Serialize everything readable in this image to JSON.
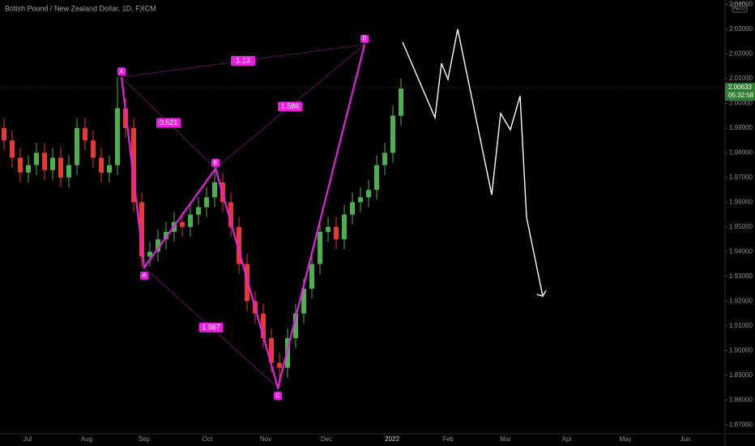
{
  "chart_data": {
    "type": "candlestick",
    "title": "British Pound / New Zealand Dollar, 1D, FXCM",
    "currency": "NZD",
    "categories": [
      "Jul",
      "Aug",
      "Sep",
      "Oct",
      "Nov",
      "Dec",
      "2022",
      "Feb",
      "Mar",
      "Apr",
      "May",
      "Jun"
    ],
    "open": [
      1.99,
      1.985,
      1.978,
      1.972,
      1.975,
      1.98,
      1.973,
      1.978,
      1.97,
      1.975,
      1.99,
      1.985,
      1.978,
      1.972,
      1.975,
      1.998,
      1.99,
      1.96,
      1.938,
      1.94,
      1.945,
      1.948,
      1.952,
      1.95,
      1.955,
      1.958,
      1.962,
      1.968,
      1.96,
      1.95,
      1.935,
      1.92,
      1.915,
      1.905,
      1.895,
      1.893,
      1.905,
      1.915,
      1.925,
      1.935,
      1.948,
      1.95,
      1.945,
      1.955,
      1.96,
      1.962,
      1.965,
      1.975,
      1.98,
      1.995
    ],
    "high": [
      1.994,
      1.989,
      1.982,
      1.979,
      1.984,
      1.984,
      1.982,
      1.982,
      1.979,
      1.994,
      1.994,
      1.989,
      1.982,
      1.979,
      2.0106,
      2.002,
      1.994,
      1.964,
      1.944,
      1.949,
      1.952,
      1.956,
      1.956,
      1.959,
      1.962,
      1.966,
      1.9736,
      1.972,
      1.964,
      1.954,
      1.939,
      1.924,
      1.919,
      1.909,
      1.899,
      1.909,
      1.919,
      1.929,
      1.939,
      1.952,
      1.954,
      1.954,
      1.959,
      1.964,
      1.966,
      1.969,
      1.979,
      1.984,
      1.999,
      2.01
    ],
    "low": [
      1.981,
      1.974,
      1.968,
      1.968,
      1.971,
      1.969,
      1.969,
      1.966,
      1.966,
      1.971,
      1.981,
      1.974,
      1.968,
      1.968,
      1.971,
      1.986,
      1.956,
      1.9336,
      1.934,
      1.936,
      1.941,
      1.944,
      1.946,
      1.946,
      1.951,
      1.954,
      1.958,
      1.956,
      1.946,
      1.931,
      1.916,
      1.911,
      1.901,
      1.891,
      1.885,
      1.889,
      1.901,
      1.911,
      1.921,
      1.931,
      1.944,
      1.941,
      1.941,
      1.951,
      1.956,
      1.958,
      1.961,
      1.971,
      1.976,
      1.991
    ],
    "close": [
      1.985,
      1.978,
      1.972,
      1.975,
      1.98,
      1.973,
      1.978,
      1.97,
      1.975,
      1.99,
      1.985,
      1.978,
      1.972,
      1.975,
      1.998,
      1.99,
      1.96,
      1.938,
      1.94,
      1.945,
      1.948,
      1.952,
      1.95,
      1.955,
      1.958,
      1.962,
      1.968,
      1.96,
      1.95,
      1.935,
      1.92,
      1.915,
      1.905,
      1.895,
      1.893,
      1.905,
      1.915,
      1.925,
      1.935,
      1.948,
      1.95,
      1.945,
      1.955,
      1.96,
      1.962,
      1.965,
      1.975,
      1.98,
      1.995,
      2.006
    ],
    "up_color": "#4caf50",
    "down_color": "#e53935",
    "pattern": {
      "color": "#e91ee0",
      "points": [
        {
          "label": "X",
          "value": 2.0106
        },
        {
          "label": "A",
          "value": 1.9336
        },
        {
          "label": "B",
          "value": 1.9736
        },
        {
          "label": "C",
          "value": 1.885
        },
        {
          "label": "D",
          "value": 2.0238
        }
      ],
      "ratios": [
        "1.13",
        "0.521",
        "1.586",
        "1.667"
      ]
    },
    "projection": {
      "color": "#ffffff",
      "values": [
        2.0247,
        1.9942,
        2.0162,
        2.0097,
        2.03,
        1.963,
        1.9959,
        1.9893,
        2.003,
        1.9539,
        1.922
      ]
    },
    "last_price": {
      "value": 2.00633,
      "label": "2.00633",
      "countdown": "05:32:58",
      "color": "#2e7d32"
    },
    "ylim": [
      1.8663,
      2.0418
    ],
    "yticks": [
      {
        "value": 1.87,
        "label": "1.87000"
      },
      {
        "value": 1.88,
        "label": "1.88000"
      },
      {
        "value": 1.89,
        "label": "1.89000"
      },
      {
        "value": 1.9,
        "label": "1.90000"
      },
      {
        "value": 1.91,
        "label": "1.91000"
      },
      {
        "value": 1.92,
        "label": "1.92000"
      },
      {
        "value": 1.93,
        "label": "1.93000"
      },
      {
        "value": 1.94,
        "label": "1.94000"
      },
      {
        "value": 1.95,
        "label": "1.95000"
      },
      {
        "value": 1.96,
        "label": "1.96000"
      },
      {
        "value": 1.97,
        "label": "1.97000"
      },
      {
        "value": 1.98,
        "label": "1.98000"
      },
      {
        "value": 1.99,
        "label": "1.99000"
      },
      {
        "value": 2.0,
        "label": "2.00000"
      },
      {
        "value": 2.01,
        "label": "2.01000"
      },
      {
        "value": 2.02,
        "label": "2.02000"
      },
      {
        "value": 2.03,
        "label": "2.03000"
      },
      {
        "value": 2.04,
        "label": "2.04000"
      }
    ]
  }
}
